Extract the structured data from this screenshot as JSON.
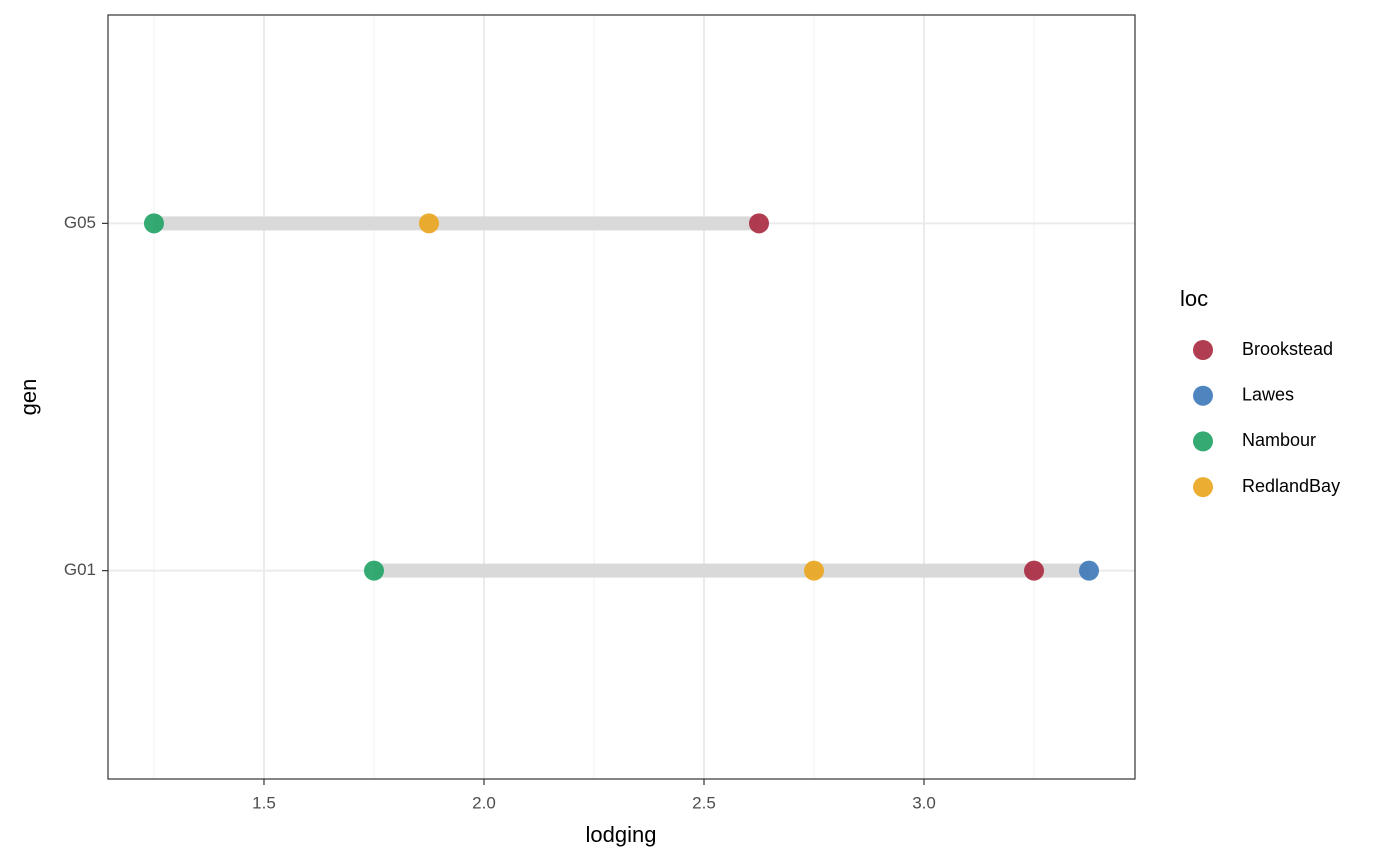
{
  "chart_data": {
    "type": "dotrange",
    "x_label": "lodging",
    "y_label": "gen",
    "legend_title": "loc",
    "categories": [
      "G01",
      "G05"
    ],
    "series": [
      {
        "name": "Brookstead",
        "color": "#a8283f",
        "values": [
          3.25,
          2.625
        ]
      },
      {
        "name": "Lawes",
        "color": "#3b78b8",
        "values": [
          3.375,
          null
        ]
      },
      {
        "name": "Nambour",
        "color": "#1fa264",
        "values": [
          1.75,
          1.25
        ]
      },
      {
        "name": "RedlandBay",
        "color": "#eaa51c",
        "values": [
          2.75,
          1.875
        ]
      }
    ],
    "xlim": [
      1.1455,
      3.4795
    ],
    "xticks": [
      1.5,
      {
        "value": 2,
        "label": "2.0"
      },
      2.5,
      {
        "value": 3,
        "label": "3.0"
      }
    ],
    "grid": true,
    "legend": "right"
  }
}
